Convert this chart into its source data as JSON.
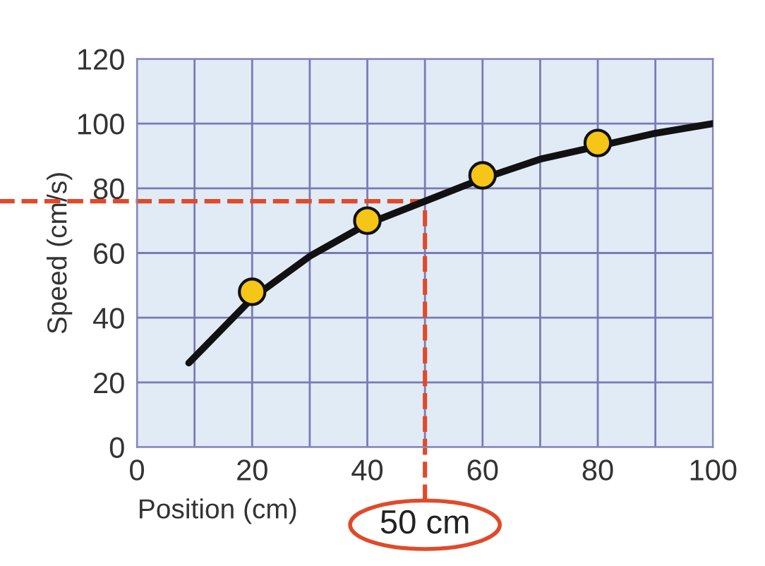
{
  "chart_data": {
    "type": "line",
    "xlabel": "Position (cm)",
    "ylabel": "Speed (cm/s)",
    "series": [
      {
        "color": "#111111",
        "marker": "none",
        "x": [
          9,
          20,
          30,
          40,
          50,
          60,
          70,
          80,
          90,
          100
        ],
        "values": [
          26,
          46,
          59,
          69,
          76,
          83,
          89,
          93,
          97,
          100
        ]
      },
      {
        "type": "scatter",
        "color": "#f5c518",
        "marker": "circle",
        "x": [
          20,
          40,
          60,
          80
        ],
        "values": [
          48,
          70,
          84,
          94
        ]
      }
    ],
    "xlim": [
      0,
      100
    ],
    "ylim": [
      0,
      120
    ],
    "xticks": [
      0,
      {
        "value": 10,
        "label": null
      },
      20,
      {
        "value": 30,
        "label": null
      },
      40,
      {
        "value": 50,
        "label": null
      },
      60,
      {
        "value": 70,
        "label": null
      },
      80,
      {
        "value": 90,
        "label": null
      },
      100
    ],
    "yticks": [
      0,
      20,
      40,
      60,
      80,
      100,
      120
    ],
    "grid": true,
    "ref_lines": [
      {
        "axis": "y",
        "value": 76,
        "color": "#e04a2a",
        "line_style": "dashed"
      },
      {
        "axis": "x",
        "value": 50,
        "color": "#e04a2a",
        "line_style": "dashed"
      }
    ],
    "annotations": [
      {
        "text": "50 cm",
        "x": 50,
        "y": 0
      }
    ]
  }
}
